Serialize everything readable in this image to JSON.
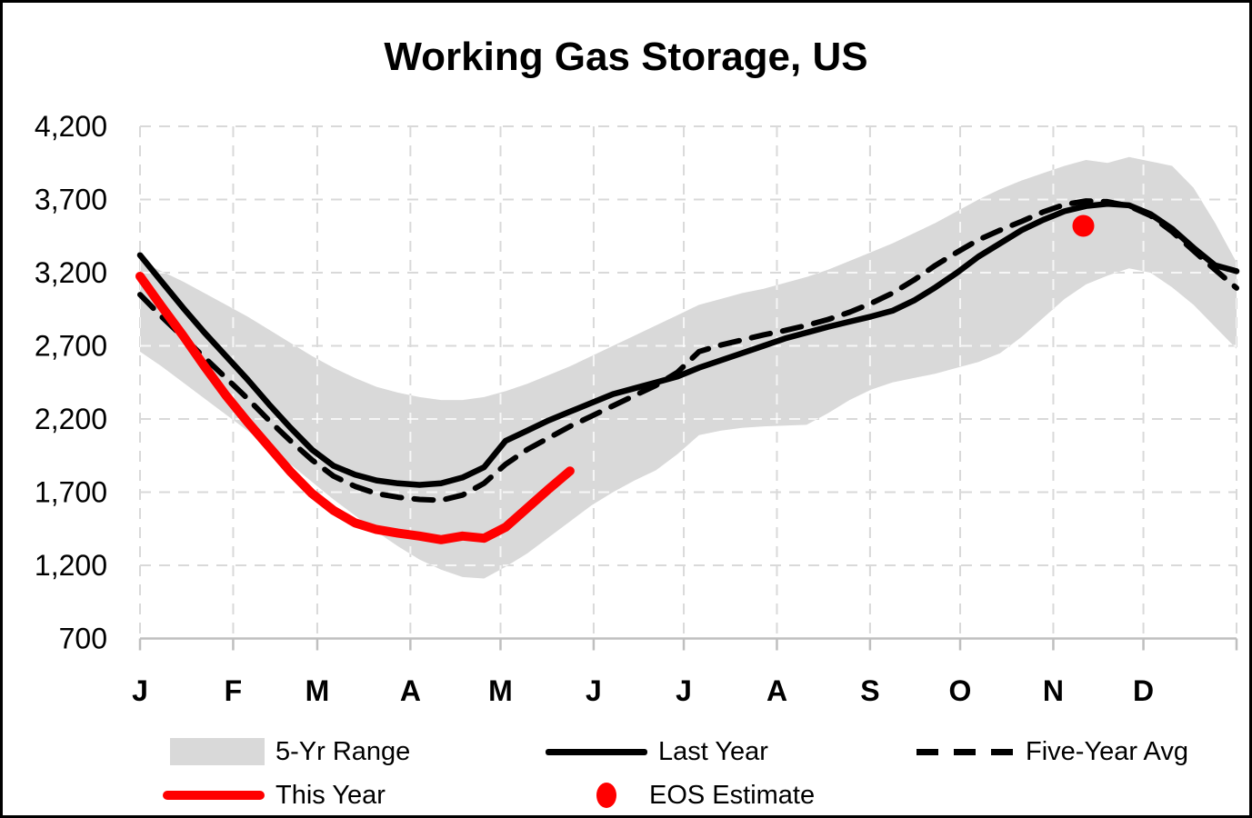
{
  "title": "Working Gas Storage, US",
  "colors": {
    "background": "#ffffff",
    "border": "#000000",
    "range_fill": "#d9d9d9",
    "last_year": "#000000",
    "five_year_avg": "#000000",
    "this_year": "#ff0000",
    "eos_estimate": "#ff0000",
    "gridline": "#d9d9d9",
    "gridline_on_band": "#ffffff",
    "axis_line": "#bfbfbf",
    "text": "#000000"
  },
  "legend": {
    "rows": [
      [
        {
          "id": "five_yr_range",
          "swatch": "box",
          "label": "5-Yr Range"
        },
        {
          "id": "last_year",
          "swatch": "line-solid",
          "label": "Last Year"
        },
        {
          "id": "five_year_avg",
          "swatch": "line-dashed",
          "label": "Five-Year Avg"
        }
      ],
      [
        {
          "id": "this_year",
          "swatch": "line-red",
          "label": "This Year"
        },
        {
          "id": "eos_estimate",
          "swatch": "dot",
          "label": "EOS Estimate"
        }
      ]
    ]
  },
  "chart_data": {
    "type": "line",
    "title": "Working Gas Storage, US",
    "xlabel": "",
    "ylabel": "",
    "ylim": [
      700,
      4200
    ],
    "grid": true,
    "legend_position": "bottom",
    "y_ticks": [
      {
        "value": 4200,
        "label": "4,200"
      },
      {
        "value": 3700,
        "label": "3,700"
      },
      {
        "value": 3200,
        "label": "3,200"
      },
      {
        "value": 2700,
        "label": "2,700"
      },
      {
        "value": 2200,
        "label": "2,200"
      },
      {
        "value": 1700,
        "label": "1,700"
      },
      {
        "value": 1200,
        "label": "1,200"
      },
      {
        "value": 700,
        "label": "700"
      }
    ],
    "x_labels": [
      "J",
      "F",
      "M",
      "A",
      "M",
      "J",
      "J",
      "A",
      "S",
      "O",
      "N",
      "D"
    ],
    "x_unit": "weekly points, Jan through Dec",
    "series": [
      {
        "name": "5-Yr Range max",
        "role": "band_top",
        "values": [
          3280,
          3210,
          3140,
          3060,
          2980,
          2900,
          2810,
          2720,
          2630,
          2550,
          2480,
          2420,
          2380,
          2350,
          2330,
          2330,
          2350,
          2390,
          2440,
          2500,
          2560,
          2630,
          2700,
          2770,
          2840,
          2910,
          2980,
          3020,
          3060,
          3090,
          3130,
          3170,
          3220,
          3280,
          3340,
          3400,
          3470,
          3540,
          3620,
          3700,
          3770,
          3830,
          3880,
          3930,
          3970,
          3950,
          3990,
          3960,
          3930,
          3780,
          3540,
          3270
        ]
      },
      {
        "name": "5-Yr Range min",
        "role": "band_bottom",
        "values": [
          2660,
          2560,
          2450,
          2340,
          2230,
          2120,
          2010,
          1890,
          1770,
          1650,
          1540,
          1430,
          1330,
          1240,
          1170,
          1120,
          1110,
          1190,
          1280,
          1390,
          1500,
          1610,
          1700,
          1780,
          1850,
          1960,
          2090,
          2120,
          2140,
          2150,
          2155,
          2160,
          2240,
          2330,
          2400,
          2450,
          2480,
          2510,
          2550,
          2590,
          2650,
          2760,
          2890,
          3020,
          3120,
          3180,
          3230,
          3200,
          3100,
          2980,
          2830,
          2680
        ]
      },
      {
        "name": "Last Year",
        "role": "line_solid",
        "values": [
          3320,
          3140,
          2960,
          2790,
          2630,
          2470,
          2300,
          2140,
          1990,
          1880,
          1820,
          1780,
          1760,
          1750,
          1760,
          1800,
          1870,
          2050,
          2120,
          2190,
          2250,
          2310,
          2370,
          2410,
          2450,
          2490,
          2550,
          2600,
          2650,
          2700,
          2750,
          2790,
          2830,
          2865,
          2900,
          2940,
          3010,
          3100,
          3200,
          3310,
          3400,
          3490,
          3560,
          3620,
          3655,
          3670,
          3660,
          3600,
          3500,
          3370,
          3250,
          3210
        ]
      },
      {
        "name": "Five-Year Avg",
        "role": "line_dashed",
        "values": [
          3050,
          2900,
          2760,
          2620,
          2480,
          2340,
          2190,
          2050,
          1920,
          1810,
          1740,
          1690,
          1665,
          1650,
          1645,
          1680,
          1760,
          1890,
          1990,
          2070,
          2150,
          2220,
          2290,
          2360,
          2430,
          2520,
          2660,
          2705,
          2740,
          2775,
          2805,
          2840,
          2880,
          2930,
          2990,
          3060,
          3150,
          3250,
          3340,
          3425,
          3490,
          3550,
          3615,
          3665,
          3690,
          3685,
          3655,
          3590,
          3480,
          3350,
          3220,
          3095
        ]
      },
      {
        "name": "This Year",
        "role": "line_red",
        "values": [
          3175,
          2970,
          2770,
          2560,
          2360,
          2180,
          2010,
          1840,
          1690,
          1575,
          1490,
          1445,
          1420,
          1400,
          1375,
          1400,
          1385,
          1460,
          1590,
          1720,
          1845
        ]
      }
    ],
    "eos_estimate": {
      "name": "EOS Estimate",
      "day_of_year": 314,
      "value": 3520
    }
  }
}
